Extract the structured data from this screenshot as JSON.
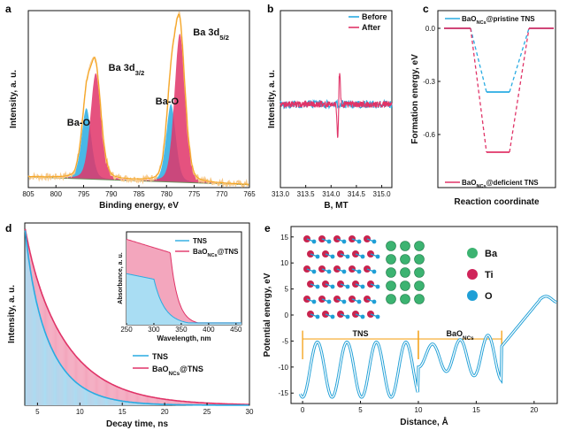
{
  "colors": {
    "orange": "#f5a623",
    "pink": "#e03468",
    "blue": "#29abe2",
    "lightblue": "#a9ddf3",
    "lightpink": "#f3a6bd",
    "green": "#3cb371"
  },
  "chart_data": [
    {
      "panel": "a",
      "type": "line",
      "xlabel": "Binding energy, eV",
      "ylabel": "Intensity, a. u.",
      "xlim": [
        805,
        765
      ],
      "xticks": [
        805,
        800,
        795,
        790,
        785,
        780,
        775,
        770,
        765
      ],
      "peaks": [
        {
          "label": "Ba-O",
          "center": 794.5,
          "color": "#29abe2"
        },
        {
          "label": "Ba 3d3/2",
          "center": 792.8,
          "color": "#e03468"
        },
        {
          "label": "Ba-O",
          "center": 779.2,
          "color": "#29abe2"
        },
        {
          "label": "Ba 3d5/2",
          "center": 777.6,
          "color": "#e03468"
        }
      ],
      "annotations": [
        {
          "text": "Ba 3d",
          "sub": "3/2",
          "x": 790.5,
          "y": 0.66
        },
        {
          "text": "Ba 3d",
          "sub": "5/2",
          "x": 775.2,
          "y": 0.86
        },
        {
          "text": "Ba-O",
          "x": 798.0,
          "y": 0.35
        },
        {
          "text": "Ba-O",
          "x": 782.0,
          "y": 0.47
        }
      ]
    },
    {
      "panel": "b",
      "type": "line",
      "xlabel": "B, MT",
      "ylabel": "Intensity, a. u.",
      "xlim": [
        313.0,
        315.2
      ],
      "xticks": [
        "313.0",
        "313.5",
        "314.0",
        "314.5",
        "315.0"
      ],
      "series": [
        {
          "name": "Before",
          "color": "#29abe2"
        },
        {
          "name": "After",
          "color": "#e03468"
        }
      ],
      "center": 314.15
    },
    {
      "panel": "c",
      "type": "line",
      "xlabel": "Reaction coordinate",
      "ylabel": "Formation energy, eV",
      "ylim": [
        -0.9,
        0.1
      ],
      "yticks": [
        "0.0",
        "-0.3",
        "-0.6"
      ],
      "series": [
        {
          "name": "BaO",
          "sub": "NCs",
          "suffix": "@pristine TNS",
          "color": "#29abe2",
          "x": [
            0,
            1,
            2,
            3,
            4,
            5
          ],
          "y": [
            0,
            0,
            -0.36,
            -0.36,
            0,
            0
          ]
        },
        {
          "name": "BaO",
          "sub": "NCs",
          "suffix": "@deficient TNS",
          "color": "#e03468",
          "x": [
            0,
            1,
            2,
            3,
            4,
            5
          ],
          "y": [
            0,
            0,
            -0.7,
            -0.7,
            0,
            0
          ]
        }
      ]
    },
    {
      "panel": "d",
      "type": "bar",
      "xlabel": "Decay time, ns",
      "ylabel": "Intensity, a. u.",
      "xlim": [
        3.5,
        30
      ],
      "xticks": [
        5,
        10,
        15,
        20,
        25,
        30
      ],
      "series": [
        {
          "name": "TNS",
          "color": "#29abe2",
          "tau": 3.2
        },
        {
          "name": "BaO",
          "sub": "NCs",
          "suffix": "@TNS",
          "color": "#e03468",
          "tau": 5.0
        }
      ],
      "inset": {
        "xlabel": "Wavelength, nm",
        "ylabel": "Absorbance, a. u.",
        "xlim": [
          250,
          460
        ],
        "xticks": [
          250,
          300,
          350,
          400,
          450
        ],
        "series": [
          {
            "name": "TNS",
            "color": "#29abe2"
          },
          {
            "name": "BaO",
            "sub": "NCs",
            "suffix": "@TNS",
            "color": "#e03468"
          }
        ]
      }
    },
    {
      "panel": "e",
      "type": "line",
      "xlabel": "Distance, Å",
      "ylabel": "Potential energy, eV",
      "xlim": [
        -1,
        22
      ],
      "ylim": [
        -17,
        17
      ],
      "xticks": [
        0,
        5,
        10,
        15,
        20
      ],
      "yticks": [
        15,
        10,
        5,
        0,
        -5,
        -10,
        -15
      ],
      "regions": [
        {
          "label": "TNS",
          "start": 0,
          "end": 10
        },
        {
          "label": "BaO",
          "sub": "NCs",
          "start": 10,
          "end": 17.2
        }
      ],
      "legend_atoms": [
        {
          "label": "Ba",
          "color": "#3cb371"
        },
        {
          "label": "Ti",
          "color": "#d0245a"
        },
        {
          "label": "O",
          "color": "#1f9fd6"
        }
      ]
    }
  ],
  "panels": {
    "a": "a",
    "b": "b",
    "c": "c",
    "d": "d",
    "e": "e"
  }
}
